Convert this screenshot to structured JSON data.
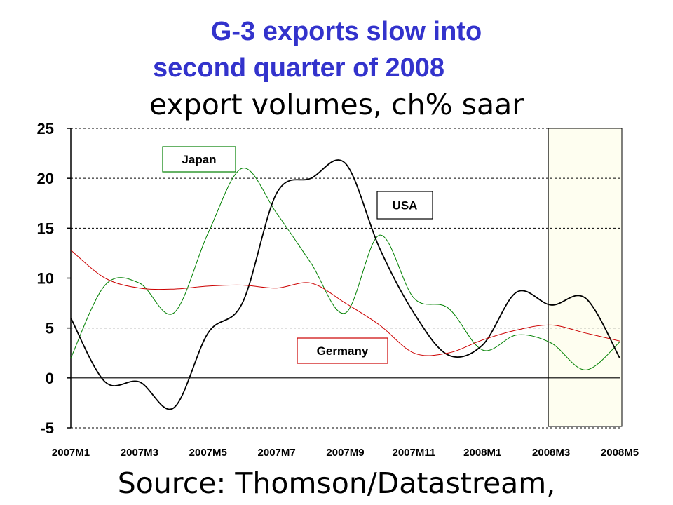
{
  "title_line1": "G-3 exports slow into",
  "title_line2": "second quarter of 2008",
  "subtitle": "export volumes, ch% saar",
  "source": "Source: Thomson/Datastream,",
  "chart_data": {
    "type": "line",
    "x": [
      "2007M1",
      "2007M2",
      "2007M3",
      "2007M4",
      "2007M5",
      "2007M6",
      "2007M7",
      "2007M8",
      "2007M9",
      "2007M10",
      "2007M11",
      "2007M12",
      "2008M1",
      "2008M2",
      "2008M3",
      "2008M4",
      "2008M5"
    ],
    "x_tick_labels": [
      "2007M1",
      "2007M3",
      "2007M5",
      "2007M7",
      "2007M9",
      "2007M11",
      "2008M1",
      "2008M3",
      "2008M5"
    ],
    "y_ticks": [
      25,
      20,
      15,
      10,
      5,
      0,
      -5
    ],
    "ylim": [
      -5,
      25
    ],
    "grid": true,
    "highlight_region": {
      "from": "2008M3",
      "to": "2008M5",
      "color": "#fefef0"
    },
    "series": [
      {
        "name": "Japan",
        "color": "#008000",
        "values": [
          2.0,
          9.3,
          9.5,
          6.5,
          14.5,
          21.0,
          16.5,
          11.5,
          6.5,
          14.3,
          8.0,
          7.0,
          2.8,
          4.3,
          3.5,
          0.8,
          3.6
        ]
      },
      {
        "name": "USA",
        "color": "#000000",
        "values": [
          6.0,
          -0.4,
          -0.4,
          -3.0,
          4.5,
          7.5,
          18.5,
          20.0,
          21.5,
          13.0,
          6.5,
          2.3,
          3.3,
          8.6,
          7.3,
          8.0,
          2.0
        ]
      },
      {
        "name": "Germany",
        "color": "#cc0000",
        "values": [
          12.8,
          10.0,
          9.0,
          8.9,
          9.2,
          9.3,
          9.0,
          9.5,
          7.5,
          5.3,
          2.5,
          2.5,
          3.8,
          4.8,
          5.3,
          4.5,
          3.7
        ]
      }
    ],
    "legend_boxes": [
      {
        "series": "Japan",
        "text": "Japan",
        "border": "#008000"
      },
      {
        "series": "USA",
        "text": "USA",
        "border": "#000000"
      },
      {
        "series": "Germany",
        "text": "Germany",
        "border": "#cc0000"
      }
    ]
  }
}
